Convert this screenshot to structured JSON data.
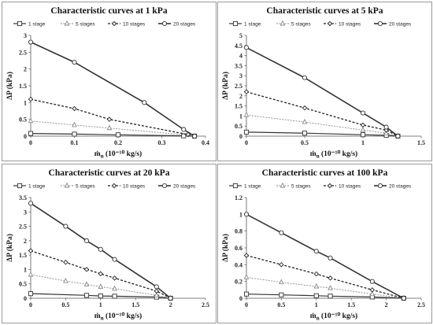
{
  "legend_labels": [
    "1 stage",
    "5 stages",
    "10 stages",
    "20 stages"
  ],
  "chart_data": [
    {
      "type": "line",
      "title": "Characteristic curves at 1 kPa",
      "xlabel_main": "ṁ",
      "xlabel_sub": "n",
      "xlabel_rest": " (10⁻¹⁰ kg/s)",
      "ylabel": "ΔP (kPa)",
      "xlim": [
        0,
        0.4
      ],
      "ylim": [
        0,
        3
      ],
      "xticks": [
        0,
        0.1,
        0.2,
        0.3,
        0.4
      ],
      "yticks": [
        0,
        0.5,
        1,
        1.5,
        2,
        2.5,
        3
      ],
      "xtick_labels": [
        "0",
        "0.1",
        "0.2",
        "0.3",
        "0.4"
      ],
      "ytick_labels": [
        "0",
        "0.5",
        "1",
        "1.5",
        "2",
        "2.5",
        "3"
      ],
      "grid": false,
      "legend_position": "top",
      "series": [
        {
          "name": "1 stage",
          "marker": "square",
          "x": [
            0,
            0.1,
            0.2,
            0.35,
            0.375
          ],
          "y": [
            0.08,
            0.06,
            0.04,
            0.01,
            0
          ]
        },
        {
          "name": "5 stages",
          "marker": "triangle",
          "x": [
            0,
            0.1,
            0.18,
            0.36,
            0.375
          ],
          "y": [
            0.45,
            0.33,
            0.24,
            0.03,
            0
          ]
        },
        {
          "name": "10 stages",
          "marker": "diamond",
          "x": [
            0,
            0.1,
            0.18,
            0.36,
            0.375
          ],
          "y": [
            1.1,
            0.82,
            0.5,
            0.05,
            0
          ]
        },
        {
          "name": "20 stages",
          "marker": "circle",
          "x": [
            0,
            0.1,
            0.26,
            0.35,
            0.375
          ],
          "y": [
            2.8,
            2.2,
            1.0,
            0.2,
            0
          ]
        }
      ]
    },
    {
      "type": "line",
      "title": "Characteristic curves at 5 kPa",
      "xlabel_main": "ṁ",
      "xlabel_sub": "n",
      "xlabel_rest": " (10⁻¹⁰ kg/s)",
      "ylabel": "ΔP (kPa)",
      "xlim": [
        0,
        1.5
      ],
      "ylim": [
        0,
        5
      ],
      "xticks": [
        0,
        0.5,
        1,
        1.5
      ],
      "yticks": [
        0,
        0.5,
        1,
        1.5,
        2,
        2.5,
        3,
        3.5,
        4,
        4.5,
        5
      ],
      "xtick_labels": [
        "0",
        "0.5",
        "1",
        "1.5"
      ],
      "ytick_labels": [
        "0",
        "0.5",
        "1",
        "1.5",
        "2",
        "2.5",
        "3",
        "3.5",
        "4",
        "4.5",
        "5"
      ],
      "grid": false,
      "legend_position": "top",
      "series": [
        {
          "name": "1 stage",
          "marker": "square",
          "x": [
            0,
            0.5,
            1.0,
            1.2,
            1.3
          ],
          "y": [
            0.2,
            0.15,
            0.07,
            0.04,
            0
          ]
        },
        {
          "name": "5 stages",
          "marker": "triangle",
          "x": [
            0,
            0.5,
            1.0,
            1.2,
            1.3
          ],
          "y": [
            1.05,
            0.7,
            0.3,
            0.15,
            0
          ]
        },
        {
          "name": "10 stages",
          "marker": "diamond",
          "x": [
            0,
            0.5,
            1.0,
            1.2,
            1.3
          ],
          "y": [
            2.2,
            1.4,
            0.55,
            0.3,
            0
          ]
        },
        {
          "name": "20 stages",
          "marker": "circle",
          "x": [
            0,
            0.5,
            1.0,
            1.2,
            1.3
          ],
          "y": [
            4.4,
            2.9,
            1.15,
            0.45,
            0
          ]
        }
      ]
    },
    {
      "type": "line",
      "title": "Characteristic curves at 20 kPa",
      "xlabel_main": "ṁ",
      "xlabel_sub": "n",
      "xlabel_rest": " (10⁻¹⁰ kg/s)",
      "ylabel": "ΔP (kPa)",
      "xlim": [
        0,
        2.5
      ],
      "ylim": [
        0,
        3.5
      ],
      "xticks": [
        0,
        0.5,
        1,
        1.5,
        2,
        2.5
      ],
      "yticks": [
        0,
        0.5,
        1,
        1.5,
        2,
        2.5,
        3,
        3.5
      ],
      "xtick_labels": [
        "0",
        "0.5",
        "1",
        "1.5",
        "2",
        "2.5"
      ],
      "ytick_labels": [
        "0",
        "0.5",
        "1",
        "1.5",
        "2",
        "2.5",
        "3",
        "3.5"
      ],
      "grid": false,
      "legend_position": "top",
      "series": [
        {
          "name": "1 stage",
          "marker": "square",
          "x": [
            0,
            0.8,
            1.0,
            1.2,
            1.8,
            2.0
          ],
          "y": [
            0.16,
            0.1,
            0.08,
            0.07,
            0.04,
            0
          ]
        },
        {
          "name": "5 stages",
          "marker": "triangle",
          "x": [
            0,
            0.5,
            0.8,
            1.0,
            1.2,
            1.8,
            2.0
          ],
          "y": [
            0.82,
            0.6,
            0.48,
            0.4,
            0.33,
            0.1,
            0
          ]
        },
        {
          "name": "10 stages",
          "marker": "diamond",
          "x": [
            0,
            0.5,
            0.8,
            1.0,
            1.2,
            1.8,
            2.0
          ],
          "y": [
            1.65,
            1.25,
            1.0,
            0.85,
            0.7,
            0.25,
            0
          ]
        },
        {
          "name": "20 stages",
          "marker": "circle",
          "x": [
            0,
            0.5,
            0.8,
            1.0,
            1.2,
            1.8,
            2.0
          ],
          "y": [
            3.3,
            2.5,
            2.0,
            1.7,
            1.35,
            0.4,
            0
          ]
        }
      ]
    },
    {
      "type": "line",
      "title": "Characteristic curves at 100 kPa",
      "xlabel_main": "ṁ",
      "xlabel_sub": "n",
      "xlabel_rest": " (10⁻¹⁰ kg/s)",
      "ylabel": "ΔP (kPa)",
      "xlim": [
        0,
        2.5
      ],
      "ylim": [
        0,
        1.2
      ],
      "xticks": [
        0,
        0.5,
        1,
        1.5,
        2,
        2.5
      ],
      "yticks": [
        0,
        0.2,
        0.4,
        0.6,
        0.8,
        1,
        1.2
      ],
      "xtick_labels": [
        "0",
        "0.5",
        "1",
        "1.5",
        "2",
        "2.5"
      ],
      "ytick_labels": [
        "0",
        "0.2",
        "0.4",
        "0.6",
        "0.8",
        "1",
        "1.2"
      ],
      "grid": false,
      "legend_position": "top",
      "series": [
        {
          "name": "1 stage",
          "marker": "square",
          "x": [
            0,
            0.5,
            1.0,
            1.2,
            1.8,
            2.25
          ],
          "y": [
            0.05,
            0.04,
            0.03,
            0.025,
            0.015,
            0
          ]
        },
        {
          "name": "5 stages",
          "marker": "triangle",
          "x": [
            0,
            0.5,
            1.0,
            1.2,
            1.8,
            2.25
          ],
          "y": [
            0.25,
            0.19,
            0.14,
            0.12,
            0.05,
            0
          ]
        },
        {
          "name": "10 stages",
          "marker": "diamond",
          "x": [
            0,
            0.5,
            1.0,
            1.2,
            1.8,
            2.25
          ],
          "y": [
            0.51,
            0.4,
            0.29,
            0.24,
            0.1,
            0
          ]
        },
        {
          "name": "20 stages",
          "marker": "circle",
          "x": [
            0,
            0.5,
            1.0,
            1.2,
            1.8,
            2.25
          ],
          "y": [
            1.0,
            0.78,
            0.56,
            0.48,
            0.2,
            0
          ]
        }
      ]
    }
  ]
}
